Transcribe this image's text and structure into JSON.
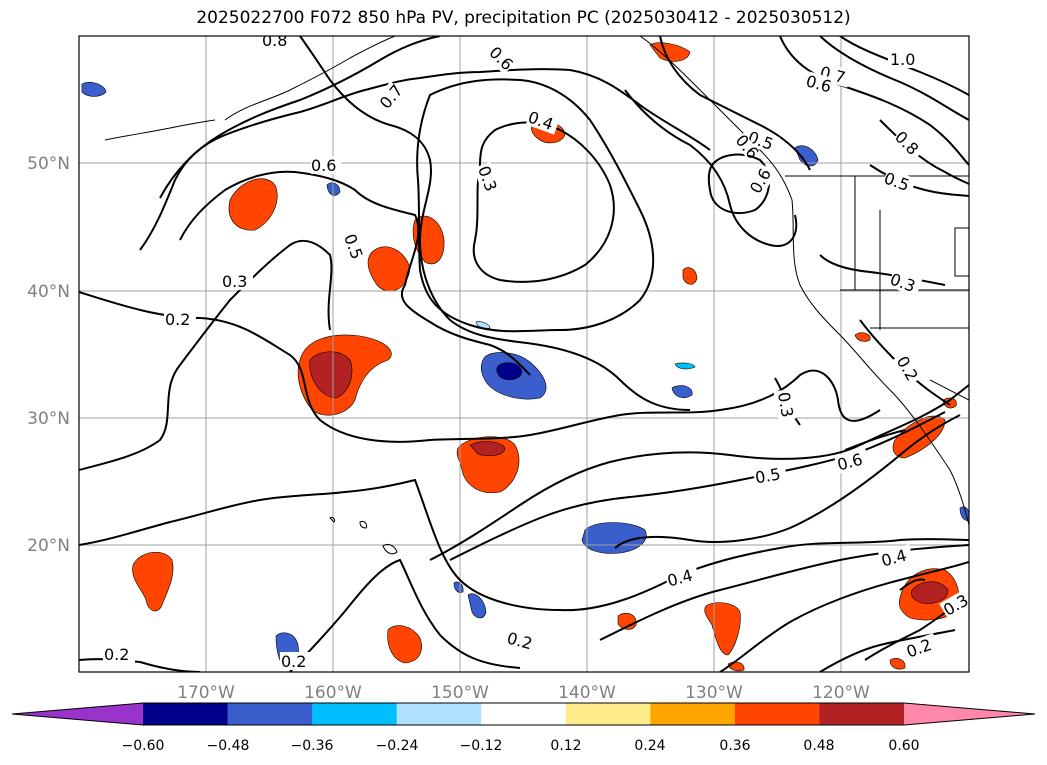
{
  "title": "2025022700 F072 850 hPa PV, precipitation PC (2025030412 - 2025030512)",
  "map": {
    "lon_range": [
      -180,
      -110
    ],
    "lat_range": [
      10,
      60
    ],
    "lon_ticks": [
      "170°W",
      "160°W",
      "150°W",
      "140°W",
      "130°W",
      "120°W"
    ],
    "lat_ticks": [
      "20°N",
      "30°N",
      "40°N",
      "50°N"
    ],
    "gridlines": true,
    "contour_labels": [
      "0.8",
      "0.7",
      "0.6",
      "0.6",
      "0.4",
      "0.3",
      "0.6",
      "0.5",
      "0.5",
      "0.6",
      "0.7",
      "0.6",
      "1.0",
      "0.8",
      "0.5",
      "0.3",
      "0.2",
      "0.3",
      "0.2",
      "0.3",
      "0.5",
      "0.6",
      "0.4",
      "0.4",
      "0.3",
      "0.2",
      "0.2",
      "0.2",
      "0.2"
    ]
  },
  "colorbar": {
    "ticks": [
      "−0.60",
      "−0.48",
      "−0.36",
      "−0.24",
      "−0.12",
      "0.12",
      "0.24",
      "0.36",
      "0.48",
      "0.60"
    ],
    "colors": [
      "#9933cc",
      "#00008b",
      "#3a5fcd",
      "#00bfff",
      "#b0e2ff",
      "#ffffff",
      "#ffec8b",
      "#ffa500",
      "#ff4500",
      "#b22222",
      "#ff88aa"
    ]
  }
}
